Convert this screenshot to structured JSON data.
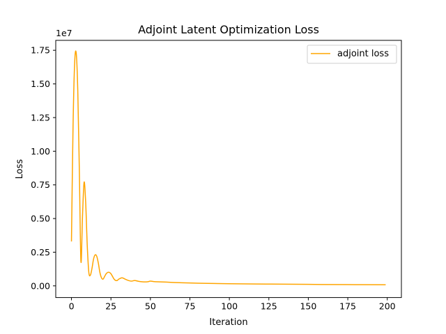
{
  "chart_data": {
    "type": "line",
    "title": "Adjoint Latent Optimization Loss",
    "xlabel": "Iteration",
    "ylabel": "Loss",
    "y_offset_label": "1e7",
    "xlim": [
      -9.95,
      208.95
    ],
    "ylim": [
      -0.0868,
      1.8235
    ],
    "x_ticks": [
      0,
      25,
      50,
      75,
      100,
      125,
      150,
      175,
      200
    ],
    "x_tick_labels": [
      "0",
      "25",
      "50",
      "75",
      "100",
      "125",
      "150",
      "175",
      "200"
    ],
    "y_ticks": [
      0,
      0.25,
      0.5,
      0.75,
      1.0,
      1.25,
      1.5,
      1.75
    ],
    "y_tick_labels": [
      "0.00",
      "0.25",
      "0.50",
      "0.75",
      "1.00",
      "1.25",
      "1.50",
      "1.75"
    ],
    "legend_position": "top-right",
    "grid": false,
    "series": [
      {
        "name": "adjoint loss",
        "color": "#ffa500",
        "x": [
          0,
          1,
          2,
          3,
          4,
          5,
          6,
          7,
          8,
          9,
          10,
          11,
          12,
          13,
          14,
          15,
          16,
          17,
          18,
          19,
          20,
          21,
          22,
          23,
          24,
          25,
          26,
          27,
          28,
          29,
          30,
          32,
          34,
          36,
          38,
          40,
          42,
          45,
          48,
          50,
          52,
          55,
          60,
          65,
          70,
          80,
          90,
          100,
          125,
          150,
          175,
          199
        ],
        "values": [
          0.33,
          1.18,
          1.65,
          1.73,
          1.45,
          0.85,
          0.18,
          0.52,
          0.77,
          0.62,
          0.3,
          0.1,
          0.08,
          0.13,
          0.2,
          0.23,
          0.22,
          0.17,
          0.1,
          0.06,
          0.05,
          0.07,
          0.09,
          0.1,
          0.1,
          0.09,
          0.07,
          0.05,
          0.04,
          0.04,
          0.05,
          0.06,
          0.05,
          0.04,
          0.035,
          0.04,
          0.035,
          0.03,
          0.03,
          0.035,
          0.032,
          0.03,
          0.028,
          0.025,
          0.023,
          0.02,
          0.018,
          0.016,
          0.013,
          0.011,
          0.009,
          0.008
        ]
      }
    ]
  }
}
